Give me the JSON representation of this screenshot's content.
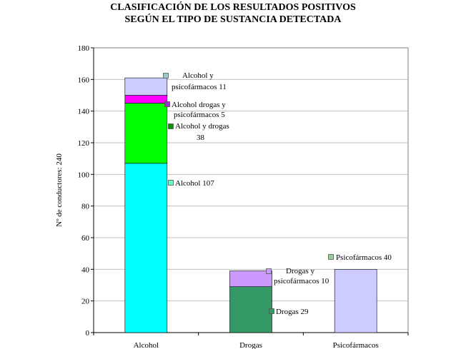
{
  "title_lines": [
    "CLASIFICACIÓN DE LOS RESULTADOS POSITIVOS",
    "SEGÚN EL TIPO DE  SUSTANCIA DETECTADA"
  ],
  "chart_data": {
    "type": "bar",
    "stacked": true,
    "ylabel": "Nº de conductores: 240",
    "ylim": [
      0,
      180
    ],
    "yticks": [
      0,
      20,
      40,
      60,
      80,
      100,
      120,
      140,
      160,
      180
    ],
    "grid": true,
    "categories": [
      "Alcohol",
      "Drogas",
      "Psicofármacos"
    ],
    "segments": [
      {
        "category": "Alcohol",
        "value": 107,
        "color": "#00FFFF",
        "label": [
          "Alcohol 107"
        ]
      },
      {
        "category": "Alcohol",
        "value": 38,
        "color": "#00FF00",
        "label": [
          "Alcohol y drogas",
          "38"
        ]
      },
      {
        "category": "Alcohol",
        "value": 5,
        "color": "#FF00FF",
        "label": [
          "Alcohol drogas y",
          "psicofármacos 5"
        ]
      },
      {
        "category": "Alcohol",
        "value": 11,
        "color": "#CCCCFF",
        "label": [
          "Alcohol y",
          "psicofármacos 11"
        ]
      },
      {
        "category": "Drogas",
        "value": 29,
        "color": "#339966",
        "label": [
          "Drogas 29"
        ]
      },
      {
        "category": "Drogas",
        "value": 10,
        "color": "#CC99FF",
        "label": [
          "Drogas y",
          "psicofármacos 10"
        ]
      },
      {
        "category": "Psicofármacos",
        "value": 40,
        "color": "#CCCCFF",
        "label": [
          "Psicofármacos  40"
        ]
      }
    ],
    "marker_colors": [
      "#66FFCC",
      "#009900",
      "#9933CC",
      "#99CCCC",
      "#339966",
      "#CC99FF",
      "#99CC99"
    ]
  }
}
